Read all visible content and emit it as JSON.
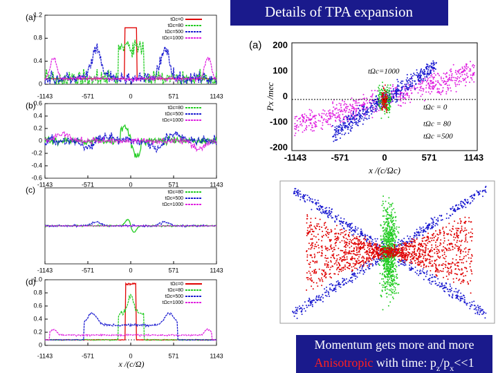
{
  "title": "Details of TPA expansion",
  "caption": {
    "line1": "Momentum gets more and more",
    "highlight": "Anisotropic",
    "rest": " with time: p",
    "sub1": "z",
    "slash": "/p",
    "sub2": "x",
    "end": "<<1"
  },
  "left_panels": [
    {
      "label": "(a)",
      "yticks": [
        "1.2",
        "0.8",
        "0.4",
        "0"
      ],
      "xticks": [
        "-1143",
        "-571",
        "0",
        "571",
        "1143"
      ],
      "legend": [
        {
          "name": "tΩc=0",
          "color": "#e00000"
        },
        {
          "name": "tΩc=80",
          "color": "#22cc22"
        },
        {
          "name": "tΩc=500",
          "color": "#1a1ad0"
        },
        {
          "name": "tΩc=1000",
          "color": "#e020e0"
        }
      ]
    },
    {
      "label": "(b)",
      "yticks": [
        "0.6",
        "0.4",
        "0.2",
        "0",
        "-0.2",
        "-0.4",
        "-0.6"
      ],
      "xticks": [
        "-1143",
        "-571",
        "0",
        "571",
        "1143"
      ],
      "legend": [
        {
          "name": "tΩc=80",
          "color": "#22cc22"
        },
        {
          "name": "tΩc=500",
          "color": "#1a1ad0"
        },
        {
          "name": "tΩc=1000",
          "color": "#e020e0"
        }
      ]
    },
    {
      "label": "(c)",
      "yticks": [],
      "xticks": [
        "-1143",
        "-571",
        "0",
        "571",
        "1143"
      ],
      "legend": [
        {
          "name": "tΩc=80",
          "color": "#22cc22"
        },
        {
          "name": "tΩc=500",
          "color": "#1a1ad0"
        },
        {
          "name": "tΩc=1000",
          "color": "#e020e0"
        }
      ]
    },
    {
      "label": "(d)",
      "yticks": [
        "1.0",
        "0.8",
        "0.6",
        "0.4",
        "0.2",
        "0"
      ],
      "xticks": [
        "-1143",
        "-571",
        "0",
        "571",
        "1143"
      ],
      "xlabel": "x /(c/Ω)",
      "legend": [
        {
          "name": "tΩc=0",
          "color": "#e00000"
        },
        {
          "name": "tΩc=80",
          "color": "#22cc22"
        },
        {
          "name": "tΩc=500",
          "color": "#1a1ad0"
        },
        {
          "name": "tΩc=1000",
          "color": "#e020e0"
        }
      ]
    }
  ],
  "right_top": {
    "label": "(a)",
    "ylabel": "Px /mec",
    "xlabel": "x /(c/Ωc)",
    "yticks": [
      "200",
      "100",
      "0",
      "-100",
      "-200"
    ],
    "xticks": [
      "-1143",
      "-571",
      "0",
      "571",
      "1143"
    ],
    "annotations": [
      "tΩc=1000",
      "tΩc = 0",
      "tΩc = 80",
      "tΩc =500"
    ]
  }
}
